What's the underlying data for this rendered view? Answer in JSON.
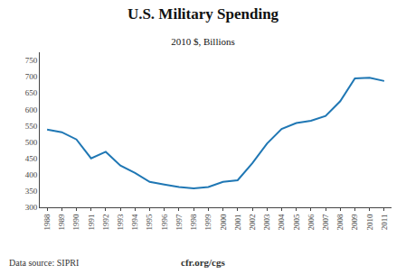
{
  "chart_data": {
    "type": "line",
    "title": "U.S. Military Spending",
    "subtitle": "2010 $, Billions",
    "x": [
      1988,
      1989,
      1990,
      1991,
      1992,
      1993,
      1994,
      1995,
      1996,
      1997,
      1998,
      1999,
      2000,
      2001,
      2002,
      2003,
      2004,
      2005,
      2006,
      2007,
      2008,
      2009,
      2010,
      2011
    ],
    "values": [
      538,
      530,
      508,
      450,
      470,
      428,
      405,
      378,
      370,
      362,
      358,
      362,
      378,
      383,
      435,
      495,
      540,
      558,
      565,
      580,
      625,
      695,
      697,
      687
    ],
    "xlim": [
      1987.5,
      2011.5
    ],
    "xticks": [
      1988,
      1989,
      1990,
      1991,
      1992,
      1993,
      1994,
      1995,
      1996,
      1997,
      1998,
      1999,
      2000,
      2001,
      2002,
      2003,
      2004,
      2005,
      2006,
      2007,
      2008,
      2009,
      2010,
      2011
    ],
    "ylim": [
      300,
      775
    ],
    "yticks": [
      300,
      350,
      400,
      450,
      500,
      550,
      600,
      650,
      700,
      750
    ],
    "grid": false,
    "annotations": [
      "Data source: SIPRI",
      "cfr.org/cgs"
    ]
  }
}
